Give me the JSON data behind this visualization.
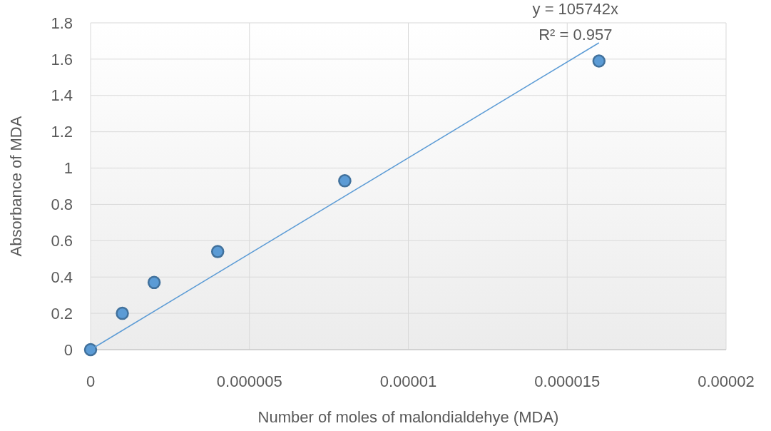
{
  "chart_data": {
    "type": "scatter",
    "xlabel": "Number of moles of malondialdehye (MDA)",
    "ylabel": "Absorbance of MDA",
    "x": [
      0,
      1e-06,
      2e-06,
      4e-06,
      8e-06,
      1.6e-05
    ],
    "series": [
      {
        "color": "#5b9bd5",
        "marker": "circle",
        "values": [
          0,
          0.2,
          0.37,
          0.54,
          0.93,
          1.59
        ]
      },
      {
        "type": "line",
        "color": "#5b9bd5",
        "x": [
          0,
          1.6e-05
        ],
        "values": [
          0,
          1.69
        ]
      }
    ],
    "annotations": [
      "y = 105742x",
      "R² = 0.957"
    ],
    "xlim": [
      0,
      2e-05
    ],
    "xticks": [
      0,
      {
        "value": 5e-06,
        "label": "0.000005"
      },
      {
        "value": 1e-05,
        "label": "0.00001"
      },
      {
        "value": 1.5e-05,
        "label": "0.000015"
      },
      {
        "value": 2e-05,
        "label": "0.00002"
      }
    ],
    "ylim": [
      0,
      1.8
    ],
    "yticks": [
      0,
      0.2,
      0.4,
      0.6,
      0.8,
      1,
      1.2,
      1.4,
      1.6,
      1.8
    ],
    "grid": true
  }
}
